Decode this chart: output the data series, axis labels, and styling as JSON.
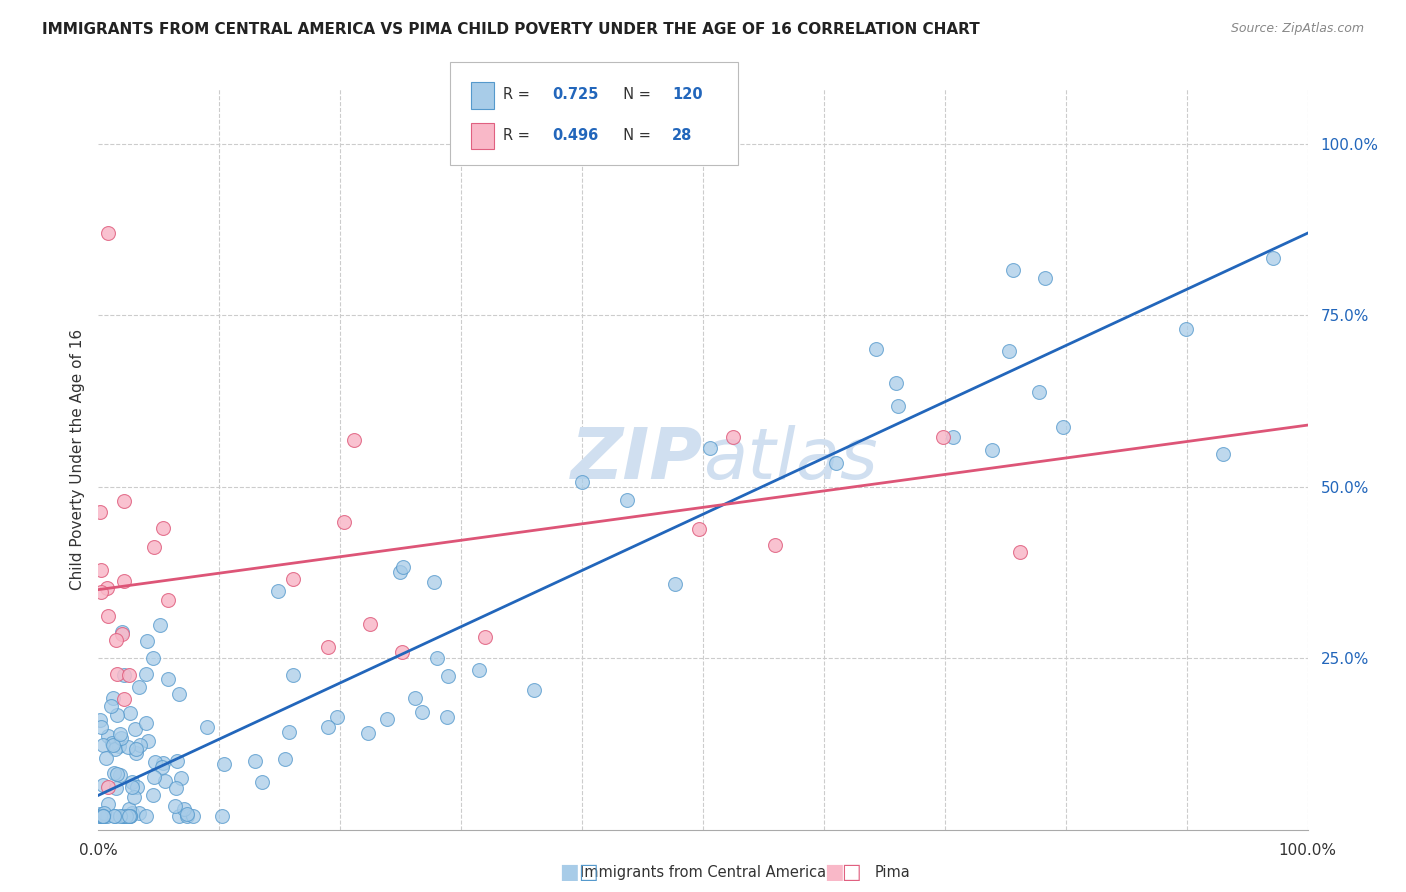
{
  "title": "IMMIGRANTS FROM CENTRAL AMERICA VS PIMA CHILD POVERTY UNDER THE AGE OF 16 CORRELATION CHART",
  "source": "Source: ZipAtlas.com",
  "ylabel": "Child Poverty Under the Age of 16",
  "y_ticks_labels": [
    "25.0%",
    "50.0%",
    "75.0%",
    "100.0%"
  ],
  "y_tick_vals": [
    0.25,
    0.5,
    0.75,
    1.0
  ],
  "legend_label_blue": "Immigrants from Central America",
  "legend_label_pink": "Pima",
  "R_blue": 0.725,
  "N_blue": 120,
  "R_pink": 0.496,
  "N_pink": 28,
  "blue_fill": "#a8cce8",
  "pink_fill": "#f9b8c8",
  "blue_edge": "#5599cc",
  "pink_edge": "#e06080",
  "blue_line_color": "#2266bb",
  "pink_line_color": "#dd5577",
  "bg_color": "#ffffff",
  "grid_color": "#cccccc",
  "title_color": "#222222",
  "source_color": "#888888",
  "watermark_color": "#d0dff0",
  "blue_intercept": 0.05,
  "blue_slope": 0.82,
  "pink_intercept": 0.35,
  "pink_slope": 0.24
}
